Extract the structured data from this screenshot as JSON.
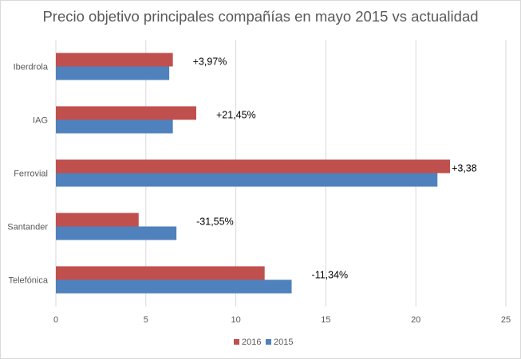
{
  "chart_data": {
    "type": "bar",
    "orientation": "horizontal",
    "title": "Precio objetivo principales compañías en mayo 2015 vs actualidad",
    "categories": [
      "Iberdrola",
      "IAG",
      "Ferrovial",
      "Santander",
      "Telefónica"
    ],
    "series": [
      {
        "name": "2016",
        "color": "#c0504d",
        "values": [
          6.5,
          7.8,
          21.9,
          4.6,
          11.6
        ]
      },
      {
        "name": "2015",
        "color": "#4f81bd",
        "values": [
          6.3,
          6.5,
          21.2,
          6.7,
          13.1
        ]
      }
    ],
    "annotations": [
      "+3,97%",
      "+21,45%",
      "+3,38",
      "-31,55%",
      "-11,34%"
    ],
    "xlim": [
      0,
      25
    ],
    "xticks": [
      "0",
      "5",
      "10",
      "15",
      "20",
      "25"
    ],
    "grid": "vertical",
    "legend": "bottom",
    "xlabel": "",
    "ylabel": ""
  }
}
